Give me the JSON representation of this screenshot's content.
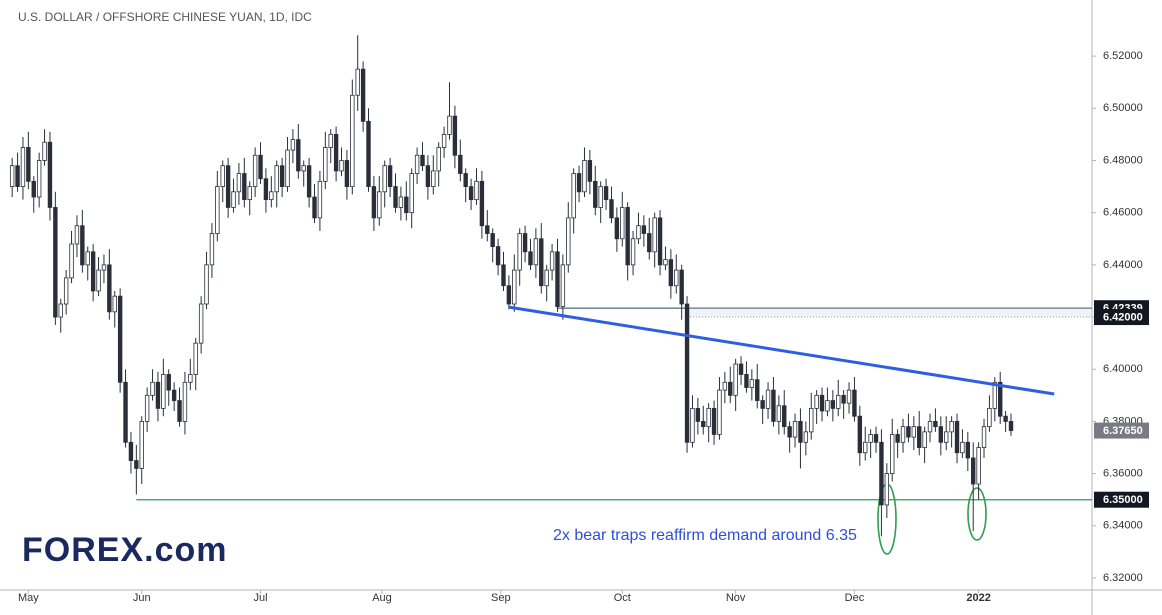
{
  "chart_data": {
    "type": "candlestick",
    "title": "U.S. DOLLAR / OFFSHORE CHINESE YUAN, 1D, IDC",
    "annotation": "2x bear traps reaffirm demand around 6.35",
    "logo": "FOREX.com",
    "up_color": "#ffffff",
    "down_color": "#2a2e39",
    "outline_color": "#2a2e39",
    "xlim": [
      -0.4,
      200
    ],
    "xticks": [
      {
        "value": 3,
        "label": "May"
      },
      {
        "value": 24,
        "label": "Jun"
      },
      {
        "value": 46,
        "label": "Jul"
      },
      {
        "value": 68.5,
        "label": "Aug"
      },
      {
        "value": 90.5,
        "label": "Sep"
      },
      {
        "value": 113,
        "label": "Oct"
      },
      {
        "value": 134,
        "label": "Nov"
      },
      {
        "value": 156,
        "label": "Dec"
      },
      {
        "value": 179,
        "label": "2022"
      }
    ],
    "ylim": [
      6.3154,
      6.5415
    ],
    "yticks": [
      {
        "value": 6.32,
        "label": "6.32000"
      },
      {
        "value": 6.34,
        "label": "6.34000"
      },
      {
        "value": 6.36,
        "label": "6.36000"
      },
      {
        "value": 6.38,
        "label": "6.38000"
      },
      {
        "value": 6.4,
        "label": "6.40000"
      },
      {
        "value": 6.42,
        "label": "6.42000"
      },
      {
        "value": 6.44,
        "label": "6.44000"
      },
      {
        "value": 6.46,
        "label": "6.46000"
      },
      {
        "value": 6.48,
        "label": "6.48000"
      },
      {
        "value": 6.5,
        "label": "6.50000"
      },
      {
        "value": 6.52,
        "label": "6.52000"
      }
    ],
    "levels": [
      {
        "value": 6.42339,
        "color": "#5d7a8a",
        "start": 101,
        "style": "solid"
      },
      {
        "value": {
          "value": 6.42,
          "label": "6.42000"
        },
        "color": "#8a8f99",
        "start": 125,
        "style": "dotted"
      },
      {
        "value": {
          "value": 6.35,
          "label": "6.35000"
        },
        "color": "#2e9e4f",
        "start": 23,
        "style": "solid"
      },
      {
        "value": {
          "value": 6.3765,
          "label": "6.37650"
        },
        "color": "#787b86",
        "start": null,
        "style": "none"
      }
    ],
    "trendline": {
      "color": "#2f5fe0",
      "x": [
        92,
        193
      ],
      "y": [
        6.4238,
        6.3905
      ]
    },
    "candles": [
      [
        6.47,
        6.481,
        6.466,
        6.478
      ],
      [
        6.478,
        6.483,
        6.468,
        6.47
      ],
      [
        6.47,
        6.489,
        6.465,
        6.485
      ],
      [
        6.485,
        6.491,
        6.469,
        6.472
      ],
      [
        6.472,
        6.474,
        6.46,
        6.466
      ],
      [
        6.466,
        6.483,
        6.462,
        6.48
      ],
      [
        6.48,
        6.492,
        6.478,
        6.487
      ],
      [
        6.487,
        6.491,
        6.457,
        6.462
      ],
      [
        6.462,
        6.468,
        6.417,
        6.42
      ],
      [
        6.42,
        6.427,
        6.414,
        6.425
      ],
      [
        6.425,
        6.438,
        6.421,
        6.435
      ],
      [
        6.435,
        6.453,
        6.433,
        6.448
      ],
      [
        6.448,
        6.459,
        6.443,
        6.455
      ],
      [
        6.455,
        6.461,
        6.437,
        6.44
      ],
      [
        6.44,
        6.447,
        6.434,
        6.445
      ],
      [
        6.445,
        6.448,
        6.426,
        6.43
      ],
      [
        6.43,
        6.443,
        6.428,
        6.438
      ],
      [
        6.438,
        6.444,
        6.433,
        6.44
      ],
      [
        6.44,
        6.446,
        6.419,
        6.422
      ],
      [
        6.422,
        6.43,
        6.416,
        6.428
      ],
      [
        6.428,
        6.431,
        6.391,
        6.395
      ],
      [
        6.395,
        6.4,
        6.37,
        6.372
      ],
      [
        6.372,
        6.376,
        6.36,
        6.365
      ],
      [
        6.365,
        6.371,
        6.352,
        6.362
      ],
      [
        6.362,
        6.382,
        6.356,
        6.38
      ],
      [
        6.38,
        6.393,
        6.376,
        6.39
      ],
      [
        6.39,
        6.4,
        6.388,
        6.395
      ],
      [
        6.395,
        6.399,
        6.38,
        6.385
      ],
      [
        6.385,
        6.404,
        6.382,
        6.398
      ],
      [
        6.398,
        6.4,
        6.386,
        6.392
      ],
      [
        6.392,
        6.395,
        6.384,
        6.388
      ],
      [
        6.388,
        6.393,
        6.378,
        6.38
      ],
      [
        6.38,
        6.399,
        6.375,
        6.395
      ],
      [
        6.395,
        6.404,
        6.392,
        6.398
      ],
      [
        6.398,
        6.412,
        6.392,
        6.41
      ],
      [
        6.41,
        6.428,
        6.406,
        6.425
      ],
      [
        6.425,
        6.445,
        6.423,
        6.44
      ],
      [
        6.44,
        6.456,
        6.435,
        6.452
      ],
      [
        6.452,
        6.476,
        6.449,
        6.47
      ],
      [
        6.47,
        6.48,
        6.464,
        6.478
      ],
      [
        6.478,
        6.481,
        6.458,
        6.462
      ],
      [
        6.462,
        6.473,
        6.46,
        6.468
      ],
      [
        6.468,
        6.479,
        6.463,
        6.475
      ],
      [
        6.475,
        6.481,
        6.462,
        6.465
      ],
      [
        6.465,
        6.472,
        6.459,
        6.47
      ],
      [
        6.47,
        6.485,
        6.466,
        6.482
      ],
      [
        6.482,
        6.487,
        6.471,
        6.473
      ],
      [
        6.473,
        6.477,
        6.46,
        6.465
      ],
      [
        6.465,
        6.474,
        6.462,
        6.468
      ],
      [
        6.468,
        6.48,
        6.462,
        6.478
      ],
      [
        6.478,
        6.481,
        6.466,
        6.47
      ],
      [
        6.47,
        6.489,
        6.468,
        6.484
      ],
      [
        6.484,
        6.492,
        6.479,
        6.488
      ],
      [
        6.488,
        6.494,
        6.473,
        6.476
      ],
      [
        6.476,
        6.48,
        6.47,
        6.478
      ],
      [
        6.478,
        6.481,
        6.462,
        6.466
      ],
      [
        6.466,
        6.471,
        6.456,
        6.458
      ],
      [
        6.458,
        6.476,
        6.453,
        6.472
      ],
      [
        6.472,
        6.491,
        6.469,
        6.485
      ],
      [
        6.485,
        6.492,
        6.479,
        6.49
      ],
      [
        6.49,
        6.493,
        6.472,
        6.476
      ],
      [
        6.476,
        6.485,
        6.474,
        6.48
      ],
      [
        6.48,
        6.484,
        6.465,
        6.47
      ],
      [
        6.47,
        6.511,
        6.467,
        6.505
      ],
      [
        6.505,
        6.528,
        6.499,
        6.515
      ],
      [
        6.515,
        6.518,
        6.491,
        6.495
      ],
      [
        6.495,
        6.5,
        6.468,
        6.47
      ],
      [
        6.47,
        6.474,
        6.453,
        6.458
      ],
      [
        6.458,
        6.474,
        6.455,
        6.468
      ],
      [
        6.468,
        6.48,
        6.462,
        6.478
      ],
      [
        6.478,
        6.481,
        6.466,
        6.47
      ],
      [
        6.47,
        6.475,
        6.46,
        6.462
      ],
      [
        6.462,
        6.47,
        6.457,
        6.466
      ],
      [
        6.466,
        6.472,
        6.457,
        6.46
      ],
      [
        6.46,
        6.477,
        6.454,
        6.475
      ],
      [
        6.475,
        6.485,
        6.471,
        6.482
      ],
      [
        6.482,
        6.487,
        6.476,
        6.478
      ],
      [
        6.478,
        6.482,
        6.465,
        6.47
      ],
      [
        6.47,
        6.482,
        6.467,
        6.476
      ],
      [
        6.476,
        6.487,
        6.47,
        6.485
      ],
      [
        6.485,
        6.493,
        6.481,
        6.49
      ],
      [
        6.49,
        6.51,
        6.488,
        6.497
      ],
      [
        6.497,
        6.501,
        6.477,
        6.482
      ],
      [
        6.482,
        6.488,
        6.472,
        6.475
      ],
      [
        6.475,
        6.477,
        6.464,
        6.47
      ],
      [
        6.47,
        6.473,
        6.461,
        6.465
      ],
      [
        6.465,
        6.477,
        6.463,
        6.472
      ],
      [
        6.472,
        6.476,
        6.45,
        6.455
      ],
      [
        6.455,
        6.461,
        6.449,
        6.452
      ],
      [
        6.452,
        6.454,
        6.441,
        6.447
      ],
      [
        6.447,
        6.45,
        6.436,
        6.44
      ],
      [
        6.44,
        6.445,
        6.43,
        6.432
      ],
      [
        6.432,
        6.436,
        6.423,
        6.425
      ],
      [
        6.425,
        6.444,
        6.422,
        6.438
      ],
      [
        6.438,
        6.454,
        6.432,
        6.452
      ],
      [
        6.452,
        6.455,
        6.441,
        6.445
      ],
      [
        6.445,
        6.45,
        6.438,
        6.44
      ],
      [
        6.44,
        6.454,
        6.435,
        6.45
      ],
      [
        6.45,
        6.456,
        6.429,
        6.432
      ],
      [
        6.432,
        6.44,
        6.426,
        6.438
      ],
      [
        6.438,
        6.448,
        6.434,
        6.445
      ],
      [
        6.445,
        6.45,
        6.422,
        6.424
      ],
      [
        6.424,
        6.444,
        6.419,
        6.44
      ],
      [
        6.44,
        6.464,
        6.437,
        6.458
      ],
      [
        6.458,
        6.477,
        6.452,
        6.475
      ],
      [
        6.475,
        6.478,
        6.464,
        6.468
      ],
      [
        6.468,
        6.485,
        6.466,
        6.48
      ],
      [
        6.48,
        6.484,
        6.467,
        6.472
      ],
      [
        6.472,
        6.478,
        6.459,
        6.462
      ],
      [
        6.462,
        6.472,
        6.456,
        6.47
      ],
      [
        6.47,
        6.473,
        6.461,
        6.465
      ],
      [
        6.465,
        6.47,
        6.456,
        6.458
      ],
      [
        6.458,
        6.462,
        6.445,
        6.45
      ],
      [
        6.45,
        6.468,
        6.447,
        6.462
      ],
      [
        6.462,
        6.464,
        6.434,
        6.44
      ],
      [
        6.44,
        6.453,
        6.436,
        6.45
      ],
      [
        6.45,
        6.46,
        6.448,
        6.455
      ],
      [
        6.455,
        6.459,
        6.447,
        6.452
      ],
      [
        6.452,
        6.458,
        6.442,
        6.445
      ],
      [
        6.445,
        6.46,
        6.439,
        6.458
      ],
      [
        6.458,
        6.461,
        6.436,
        6.44
      ],
      [
        6.44,
        6.447,
        6.438,
        6.442
      ],
      [
        6.442,
        6.446,
        6.427,
        6.432
      ],
      [
        6.432,
        6.444,
        6.429,
        6.438
      ],
      [
        6.438,
        6.44,
        6.419,
        6.425
      ],
      [
        6.425,
        6.428,
        6.368,
        6.372
      ],
      [
        6.372,
        6.39,
        6.37,
        6.385
      ],
      [
        6.385,
        6.389,
        6.375,
        6.38
      ],
      [
        6.38,
        6.386,
        6.375,
        6.378
      ],
      [
        6.378,
        6.387,
        6.372,
        6.385
      ],
      [
        6.385,
        6.388,
        6.371,
        6.375
      ],
      [
        6.375,
        6.397,
        6.373,
        6.392
      ],
      [
        6.392,
        6.399,
        6.387,
        6.395
      ],
      [
        6.395,
        6.401,
        6.387,
        6.39
      ],
      [
        6.39,
        6.404,
        6.384,
        6.402
      ],
      [
        6.402,
        6.405,
        6.394,
        6.398
      ],
      [
        6.398,
        6.403,
        6.391,
        6.393
      ],
      [
        6.393,
        6.4,
        6.388,
        6.396
      ],
      [
        6.396,
        6.402,
        6.385,
        6.388
      ],
      [
        6.388,
        6.39,
        6.379,
        6.385
      ],
      [
        6.385,
        6.395,
        6.381,
        6.392
      ],
      [
        6.392,
        6.397,
        6.378,
        6.38
      ],
      [
        6.38,
        6.39,
        6.375,
        6.386
      ],
      [
        6.386,
        6.392,
        6.375,
        6.378
      ],
      [
        6.378,
        6.38,
        6.368,
        6.374
      ],
      [
        6.374,
        6.383,
        6.37,
        6.38
      ],
      [
        6.38,
        6.385,
        6.362,
        6.372
      ],
      [
        6.372,
        6.38,
        6.367,
        6.376
      ],
      [
        6.376,
        6.391,
        6.373,
        6.385
      ],
      [
        6.385,
        6.392,
        6.379,
        6.39
      ],
      [
        6.39,
        6.393,
        6.38,
        6.384
      ],
      [
        6.384,
        6.393,
        6.382,
        6.388
      ],
      [
        6.388,
        6.392,
        6.38,
        6.385
      ],
      [
        6.385,
        6.396,
        6.382,
        6.39
      ],
      [
        6.39,
        6.392,
        6.381,
        6.387
      ],
      [
        6.387,
        6.395,
        6.383,
        6.392
      ],
      [
        6.392,
        6.397,
        6.38,
        6.382
      ],
      [
        6.382,
        6.386,
        6.363,
        6.368
      ],
      [
        6.368,
        6.378,
        6.365,
        6.372
      ],
      [
        6.372,
        6.377,
        6.366,
        6.375
      ],
      [
        6.375,
        6.378,
        6.368,
        6.372
      ],
      [
        6.372,
        6.377,
        6.336,
        6.348
      ],
      [
        6.348,
        6.364,
        6.343,
        6.36
      ],
      [
        6.36,
        6.381,
        6.357,
        6.375
      ],
      [
        6.375,
        6.377,
        6.366,
        6.372
      ],
      [
        6.372,
        6.381,
        6.368,
        6.378
      ],
      [
        6.378,
        6.383,
        6.372,
        6.374
      ],
      [
        6.374,
        6.382,
        6.369,
        6.378
      ],
      [
        6.378,
        6.384,
        6.367,
        6.37
      ],
      [
        6.37,
        6.378,
        6.364,
        6.376
      ],
      [
        6.376,
        6.383,
        6.372,
        6.38
      ],
      [
        6.38,
        6.385,
        6.376,
        6.378
      ],
      [
        6.378,
        6.382,
        6.367,
        6.372
      ],
      [
        6.372,
        6.382,
        6.369,
        6.376
      ],
      [
        6.376,
        6.382,
        6.37,
        6.38
      ],
      [
        6.38,
        6.383,
        6.364,
        6.368
      ],
      [
        6.368,
        6.377,
        6.366,
        6.372
      ],
      [
        6.372,
        6.376,
        6.361,
        6.366
      ],
      [
        6.366,
        6.372,
        6.338,
        6.356
      ],
      [
        6.356,
        6.372,
        6.35,
        6.37
      ],
      [
        6.37,
        6.381,
        6.366,
        6.378
      ],
      [
        6.378,
        6.39,
        6.376,
        6.385
      ],
      [
        6.385,
        6.397,
        6.38,
        6.395
      ],
      [
        6.395,
        6.399,
        6.379,
        6.382
      ],
      [
        6.382,
        6.384,
        6.376,
        6.38
      ],
      [
        6.38,
        6.383,
        6.3745,
        6.3765
      ]
    ]
  }
}
